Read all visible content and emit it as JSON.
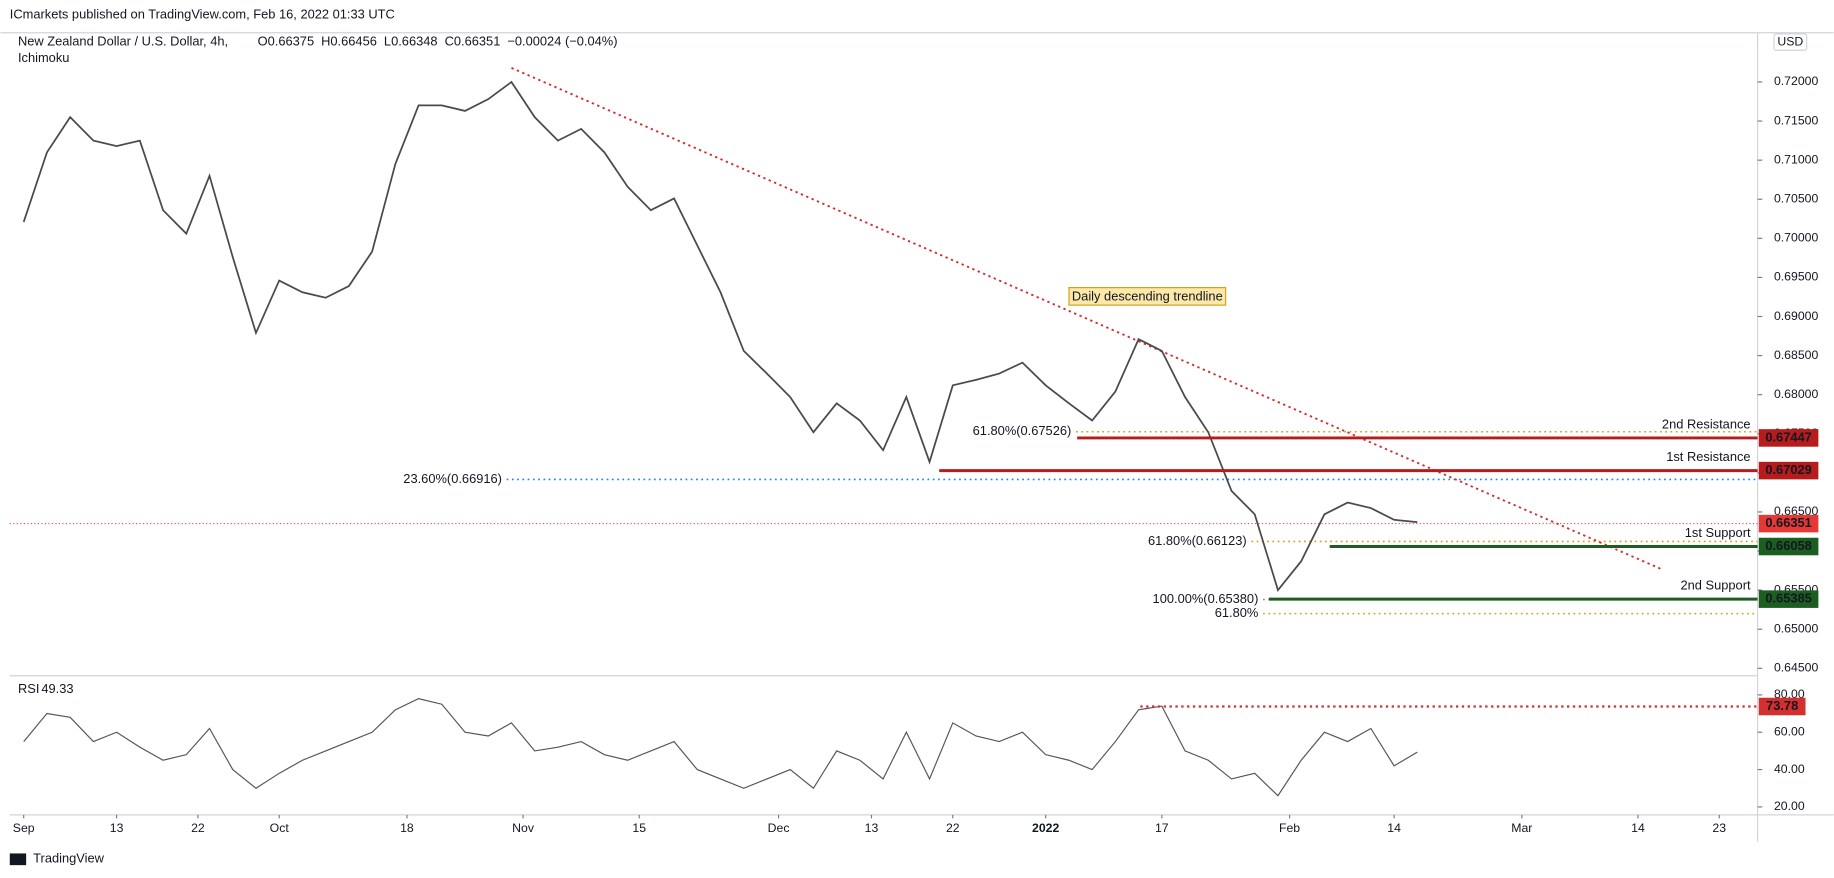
{
  "header": {
    "publisher": "ICmarkets published on TradingView.com, Feb 16, 2022 01:33 UTC",
    "symbol": "New Zealand Dollar / U.S. Dollar, 4h,",
    "ohlc": [
      "O0.66375",
      "H0.66456",
      "L0.66348",
      "C0.66351",
      "−0.00024 (−0.04%)"
    ],
    "indicator": "Ichimoku",
    "currency": "USD",
    "footer": "TradingView"
  },
  "chart_data": {
    "type": "line",
    "x": [
      0,
      2,
      4,
      6,
      8,
      10,
      12,
      14,
      16,
      18,
      20,
      22,
      24,
      26,
      28,
      30,
      32,
      34,
      36,
      38,
      40,
      42,
      44,
      46,
      48,
      50,
      52,
      54,
      56,
      58,
      60,
      62,
      64,
      66,
      68,
      70,
      72,
      74,
      76,
      78,
      80,
      82,
      84,
      86,
      88,
      90,
      92,
      94,
      96,
      98,
      100,
      102,
      104,
      106,
      108,
      110,
      112,
      114,
      116,
      118,
      120
    ],
    "series": [
      {
        "name": "NZDUSD",
        "color": "#4a4a4a",
        "values": [
          0.7021,
          0.711,
          0.7155,
          0.7125,
          0.7118,
          0.7125,
          0.7036,
          0.7006,
          0.708,
          0.6976,
          0.6879,
          0.6946,
          0.6931,
          0.6924,
          0.6939,
          0.6983,
          0.7095,
          0.717,
          0.717,
          0.7163,
          0.7178,
          0.72,
          0.7155,
          0.7125,
          0.714,
          0.711,
          0.7066,
          0.7036,
          0.7051,
          0.6991,
          0.6931,
          0.6856,
          0.6827,
          0.6797,
          0.6752,
          0.6789,
          0.6767,
          0.6729,
          0.6797,
          0.6714,
          0.6812,
          0.6819,
          0.6827,
          0.6841,
          0.6812,
          0.6789,
          0.6767,
          0.6804,
          0.6871,
          0.6856,
          0.6797,
          0.6752,
          0.6677,
          0.6647,
          0.655,
          0.6587,
          0.6647,
          0.6662,
          0.6655,
          0.664,
          0.6637
        ]
      }
    ],
    "xlim": [
      -1.2,
      149.3
    ],
    "xticks": [
      {
        "value": 0,
        "label": "Sep"
      },
      {
        "value": 8,
        "label": "13"
      },
      {
        "value": 15,
        "label": "22"
      },
      {
        "value": 22,
        "label": "Oct"
      },
      {
        "value": 33,
        "label": "18"
      },
      {
        "value": 43,
        "label": "Nov"
      },
      {
        "value": 53,
        "label": "15"
      },
      {
        "value": 65,
        "label": "Dec"
      },
      {
        "value": 73,
        "label": "13"
      },
      {
        "value": 80,
        "label": "22"
      },
      {
        "value": 88,
        "label": "2022"
      },
      {
        "value": 98,
        "label": "17"
      },
      {
        "value": 109,
        "label": "Feb"
      },
      {
        "value": 118,
        "label": "14"
      },
      {
        "value": 129,
        "label": "Mar"
      },
      {
        "value": 139,
        "label": "14"
      },
      {
        "value": 146,
        "label": "23"
      }
    ],
    "ylim": [
      0.6442,
      0.726
    ],
    "yticks": [
      {
        "value": 0.645,
        "label": "0.64500"
      },
      {
        "value": 0.65,
        "label": "0.65000"
      },
      {
        "value": 0.655,
        "label": "0.65500"
      },
      {
        "value": 0.66,
        "label": "0.66000"
      },
      {
        "value": 0.665,
        "label": "0.66500"
      },
      {
        "value": 0.67,
        "label": "0.67000"
      },
      {
        "value": 0.675,
        "label": "0.67500"
      },
      {
        "value": 0.68,
        "label": "0.68000"
      },
      {
        "value": 0.685,
        "label": "0.68500"
      },
      {
        "value": 0.69,
        "label": "0.69000"
      },
      {
        "value": 0.695,
        "label": "0.69500"
      },
      {
        "value": 0.7,
        "label": "0.70000"
      },
      {
        "value": 0.705,
        "label": "0.70500"
      },
      {
        "value": 0.71,
        "label": "0.71000"
      },
      {
        "value": 0.715,
        "label": "0.71500"
      },
      {
        "value": 0.72,
        "label": "0.72000"
      }
    ],
    "current": {
      "value": 0.66351,
      "color": "#e53935"
    },
    "levels": [
      {
        "name": "2nd Resistance",
        "value": 0.67447,
        "color": "#b71c1c"
      },
      {
        "name": "1st Resistance",
        "value": 0.67029,
        "color": "#b71c1c"
      },
      {
        "name": "1st Support",
        "value": 0.66058,
        "color": "#1b5e20"
      },
      {
        "name": "2nd Support",
        "value": 0.65385,
        "color": "#1b5e20"
      }
    ],
    "fib": [
      {
        "label": "61.80%(0.67526)",
        "value": 0.67526,
        "color": "#d4a017"
      },
      {
        "label": "23.60%(0.66916)",
        "value": 0.66916,
        "color": "#1e88e5"
      },
      {
        "label": "61.80%(0.66123)",
        "value": 0.66123,
        "color": "#d4a017"
      },
      {
        "label": "100.00%(0.65380)",
        "value": 0.6538,
        "color": "#888888"
      },
      {
        "label": "61.80%",
        "value": 0.652,
        "color": "#d4a017"
      }
    ],
    "trendline": {
      "annotation": "Daily descending trendline",
      "color": "#d32f2f",
      "x": [
        42,
        141
      ],
      "values": [
        0.7218,
        0.6577
      ]
    },
    "rsi": {
      "name": "RSI",
      "last": "49.33",
      "color": "#555555",
      "values": [
        55,
        70,
        68,
        55,
        60,
        52,
        45,
        48,
        62,
        40,
        30,
        38,
        45,
        50,
        55,
        60,
        72,
        78,
        75,
        60,
        58,
        65,
        50,
        52,
        55,
        48,
        45,
        50,
        55,
        40,
        35,
        30,
        35,
        40,
        30,
        50,
        45,
        35,
        60,
        35,
        65,
        58,
        55,
        60,
        48,
        45,
        40,
        55,
        72,
        74,
        50,
        45,
        35,
        38,
        26,
        45,
        60,
        55,
        62,
        42,
        49.33
      ],
      "ylim": [
        17,
        89
      ],
      "yticks": [
        {
          "value": 20,
          "label": "20.00"
        },
        {
          "value": 40,
          "label": "40.00"
        },
        {
          "value": 60,
          "label": "60.00"
        },
        {
          "value": 80,
          "label": "80.00"
        }
      ],
      "level": {
        "value": 73.78,
        "color": "#d32f2f"
      }
    }
  }
}
